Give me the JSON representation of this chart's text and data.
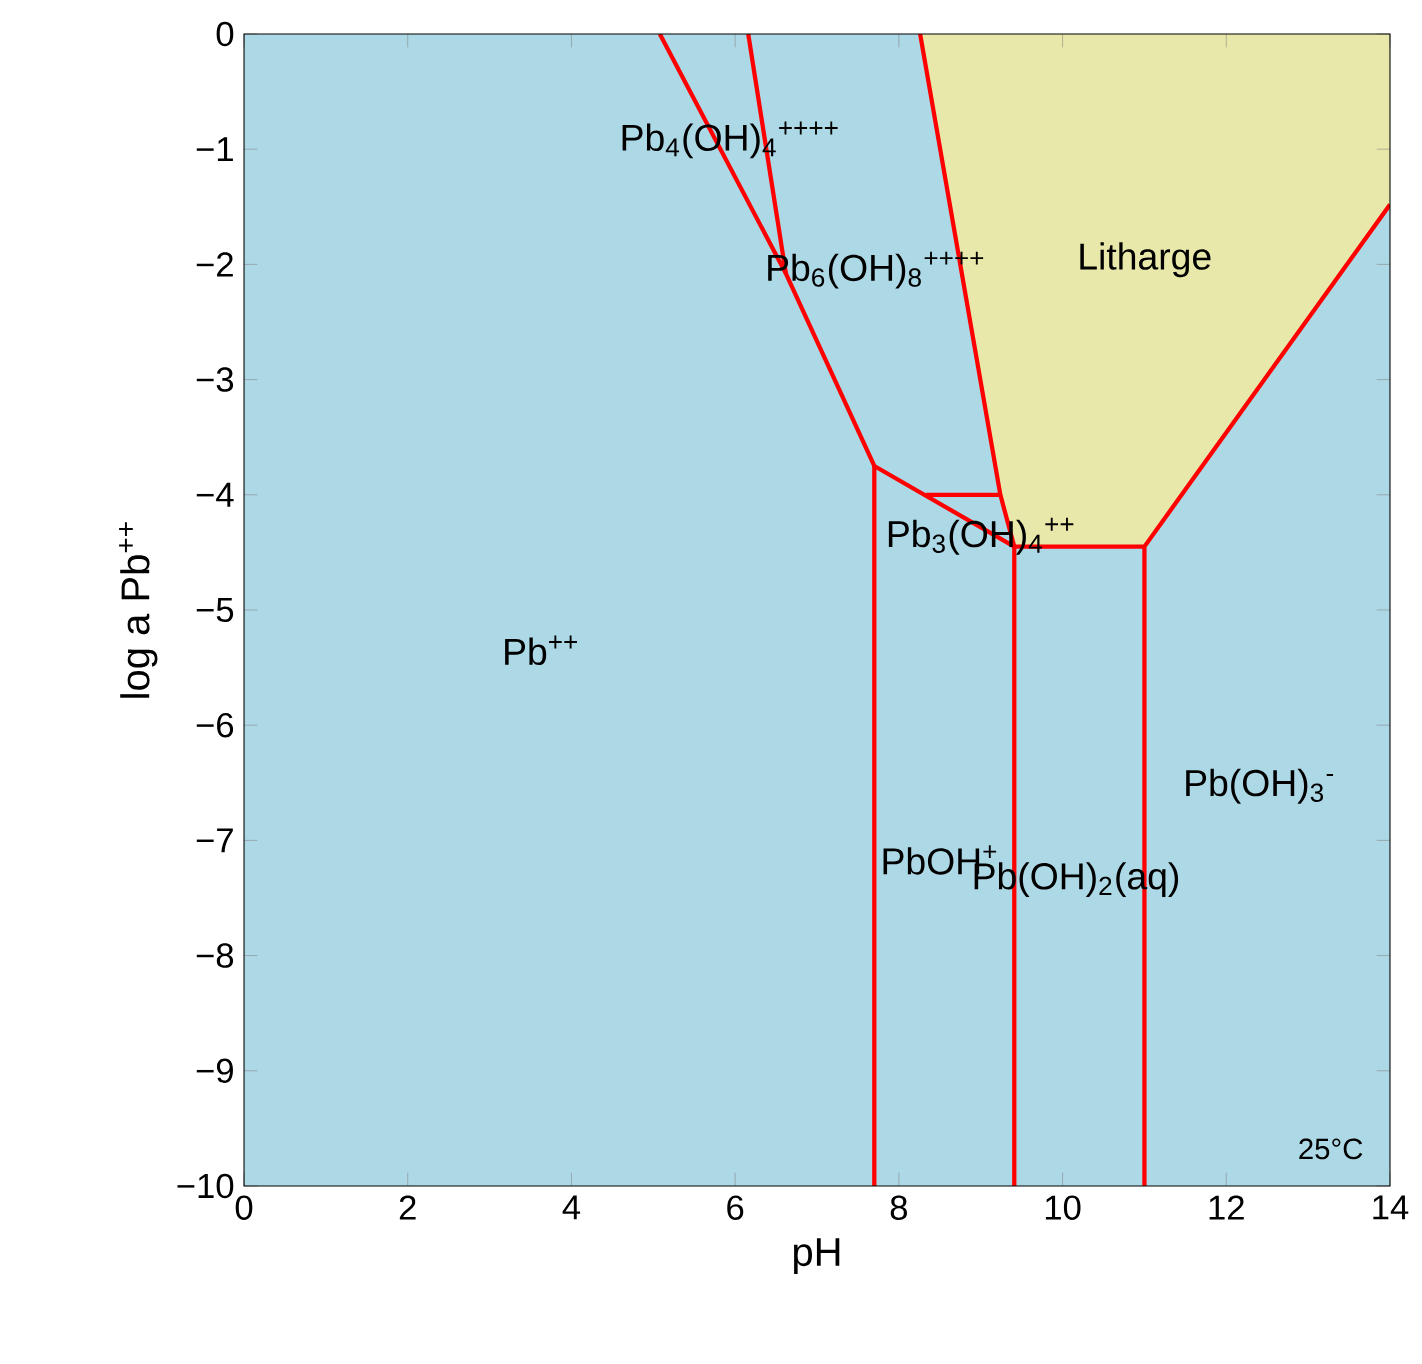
{
  "chart_data": {
    "type": "line",
    "xlabel": "pH",
    "ylabel": "log a Pb$^{++}$",
    "xlim": [
      0,
      14
    ],
    "ylim": [
      -10,
      0
    ],
    "xticks": [
      0,
      2,
      4,
      6,
      8,
      10,
      12,
      14
    ],
    "yticks": [
      {
        "value": -10,
        "label": "−10"
      },
      {
        "value": -9,
        "label": "−9"
      },
      {
        "value": -8,
        "label": "−8"
      },
      {
        "value": -7,
        "label": "−7"
      },
      {
        "value": -6,
        "label": "−6"
      },
      {
        "value": -5,
        "label": "−5"
      },
      {
        "value": -4,
        "label": "−4"
      },
      {
        "value": -3,
        "label": "−3"
      },
      {
        "value": -2,
        "label": "−2"
      },
      {
        "value": -1,
        "label": "−1"
      },
      0
    ],
    "grid": false,
    "marker": "none",
    "line_style": "solid",
    "bands": [
      {
        "axis": "x",
        "from": 0,
        "to": 14,
        "color": "#add8e6"
      }
    ],
    "series": [
      {
        "type": "area",
        "color": "#e8e8aa",
        "x": [
          8.26,
          9.24,
          9.41,
          11,
          14
        ],
        "values": [
          0,
          -4.0,
          -4.45,
          -4.45,
          -1.48
        ]
      },
      {
        "color": "#ff0000",
        "x": [
          5.08,
          6.62,
          7.7,
          9.41,
          11
        ],
        "values": [
          0,
          -2.08,
          -3.75,
          -4.45,
          -4.45
        ]
      },
      {
        "color": "#ff0000",
        "x": [
          6.16,
          6.62
        ],
        "values": [
          0,
          -2.08
        ]
      },
      {
        "color": "#ff0000",
        "x": [
          8.26,
          9.24,
          9.41,
          9.41
        ],
        "values": [
          0,
          -4.0,
          -4.45,
          -10
        ]
      },
      {
        "color": "#ff0000",
        "x": [
          8.33,
          9.24
        ],
        "values": [
          -4.0,
          -4.0
        ]
      },
      {
        "color": "#ff0000",
        "x": [
          7.7,
          7.7
        ],
        "values": [
          -3.75,
          -10
        ]
      },
      {
        "color": "#ff0000",
        "x": [
          14,
          11,
          11
        ],
        "values": [
          -1.48,
          -4.45,
          -10
        ]
      }
    ],
    "annotations": [
      "Pb$_{4}$(OH)$_{4}$$^{++++}$",
      "Pb$_{6}$(OH)$_{8}$$^{++++}$",
      "Litharge",
      "Pb$_{3}$(OH)$_{4}$$^{++}$",
      "Pb$^{++}$",
      "PbOH$^{+}$",
      "Pb(OH)$_{2}$(aq)",
      "Pb(OH)$_{3}$$^{-}$",
      "25°C"
    ]
  }
}
